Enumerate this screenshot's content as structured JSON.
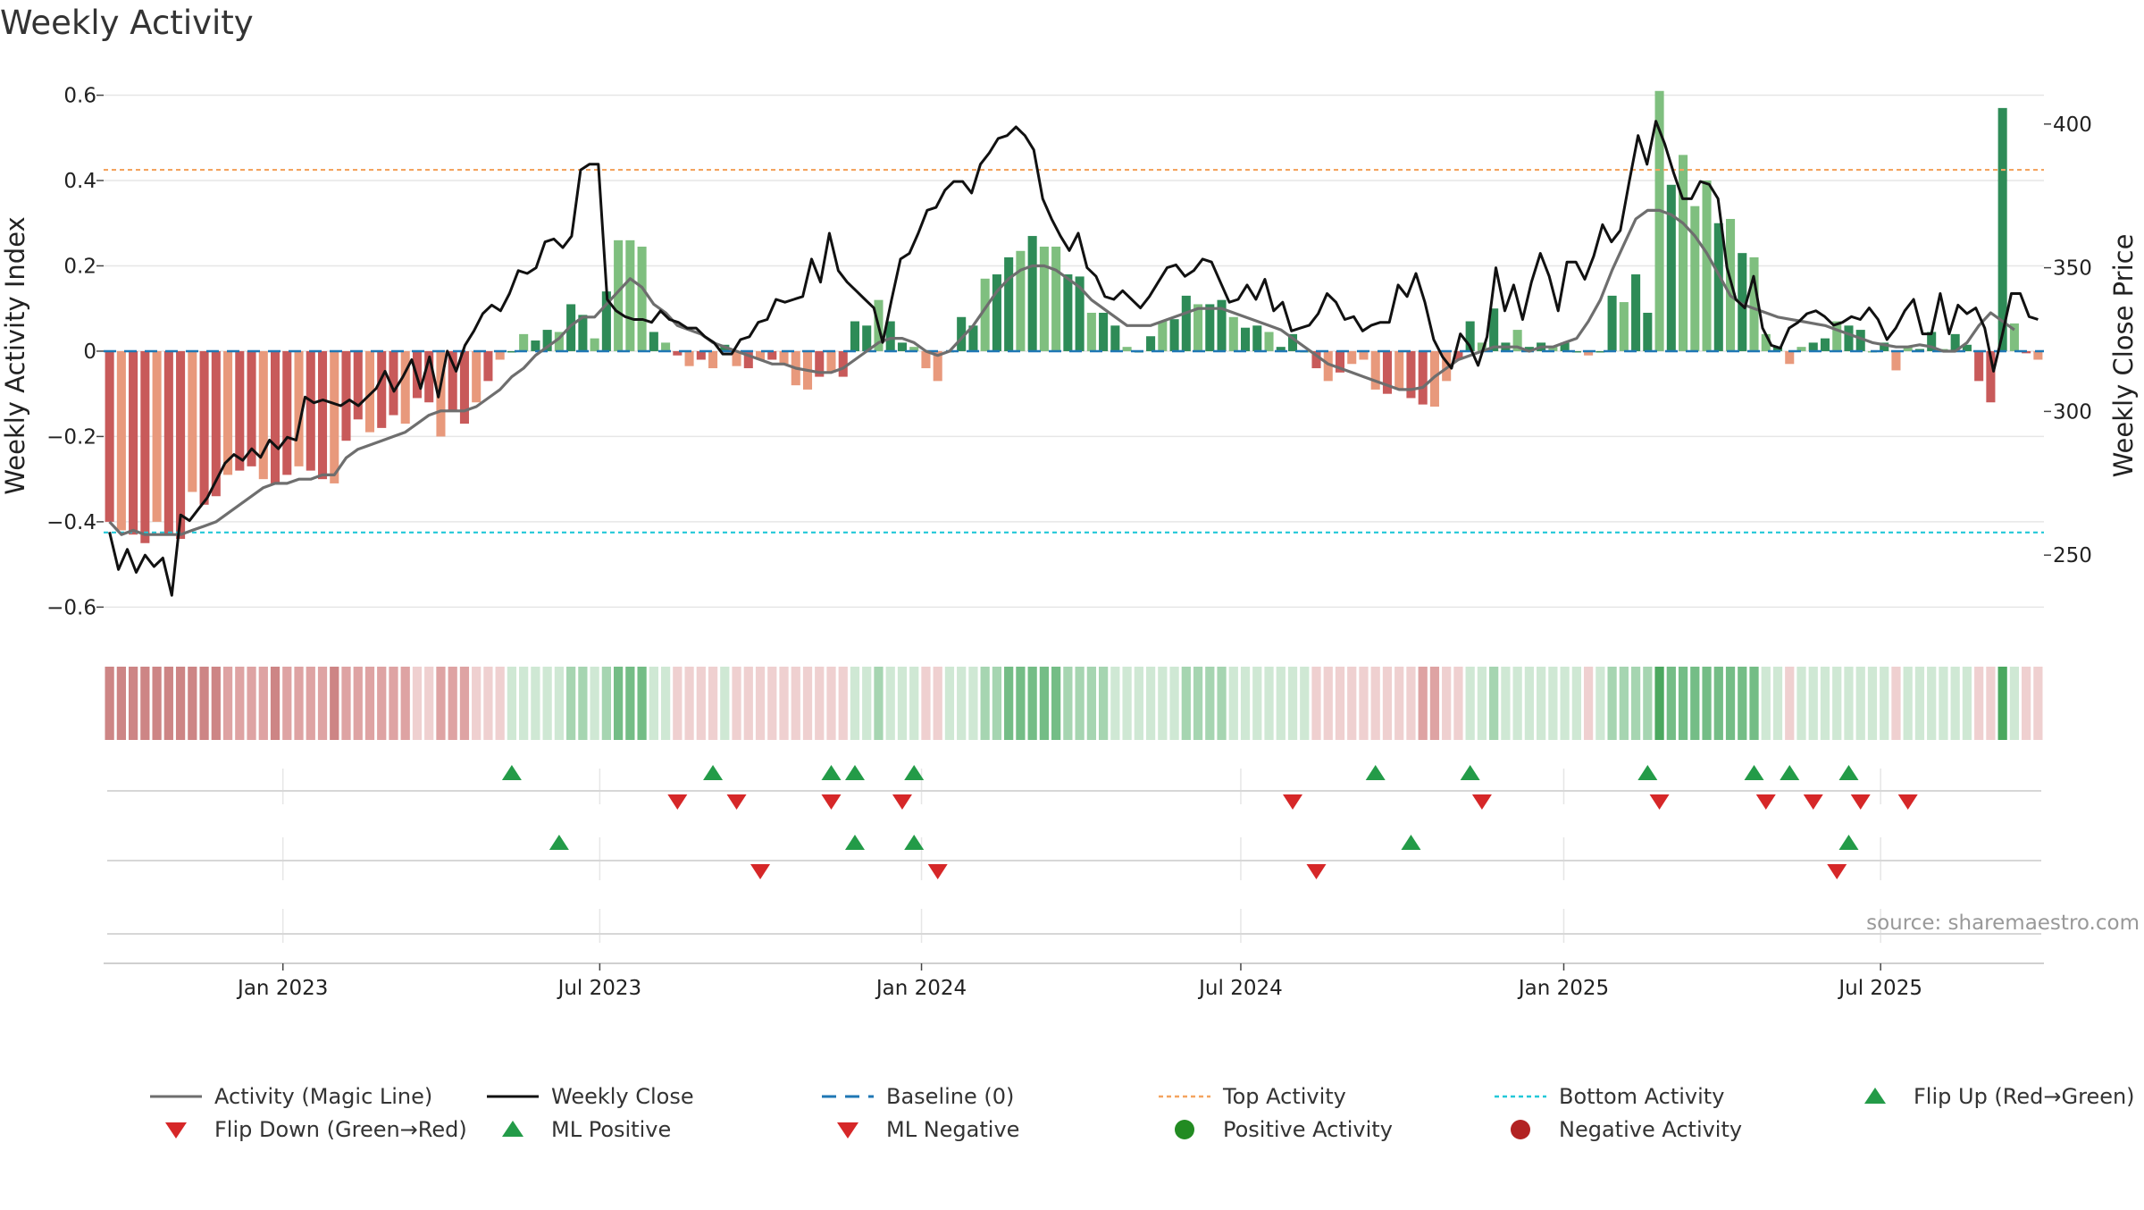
{
  "chart_data": {
    "type": "bar",
    "title": "Weekly Activity",
    "ylabel": "Weekly Activity Index",
    "y2label": "Weekly Close Price",
    "ylim": [
      -0.66,
      0.62
    ],
    "y2lim": [
      223,
      413
    ],
    "yticks": [
      -0.6,
      -0.4,
      -0.2,
      0,
      0.2,
      0.4,
      0.6
    ],
    "ytick_labels": [
      "−0.6",
      "−0.4",
      "−0.2",
      "0",
      "0.2",
      "0.4",
      "0.6"
    ],
    "y2ticks": [
      250,
      300,
      350,
      400
    ],
    "ytick2_labels": [
      "250",
      "300",
      "350",
      "400"
    ],
    "x_start": "2022-10-10",
    "x_domain_weeks": [
      0,
      158
    ],
    "x_ticks": [
      {
        "label": "Jan 2023",
        "week": 14.6
      },
      {
        "label": "Jul 2023",
        "week": 40.4
      },
      {
        "label": "Jan 2024",
        "week": 66.6
      },
      {
        "label": "Jul 2024",
        "week": 92.6
      },
      {
        "label": "Jan 2025",
        "week": 118.9
      },
      {
        "label": "Jul 2025",
        "week": 144.7
      }
    ],
    "top_activity": 0.425,
    "bottom_activity": -0.425,
    "activity": [
      -0.4,
      -0.42,
      -0.43,
      -0.45,
      -0.4,
      -0.43,
      -0.44,
      -0.33,
      -0.36,
      -0.34,
      -0.29,
      -0.28,
      -0.27,
      -0.3,
      -0.31,
      -0.29,
      -0.27,
      -0.28,
      -0.3,
      -0.31,
      -0.21,
      -0.16,
      -0.19,
      -0.18,
      -0.15,
      -0.17,
      -0.11,
      -0.12,
      -0.2,
      -0.14,
      -0.17,
      -0.12,
      -0.07,
      -0.02,
      0.0,
      0.04,
      0.025,
      0.05,
      0.045,
      0.11,
      0.085,
      0.03,
      0.14,
      0.26,
      0.26,
      0.245,
      0.045,
      0.02,
      -0.01,
      -0.035,
      -0.02,
      -0.04,
      0.015,
      -0.035,
      -0.04,
      -0.02,
      -0.02,
      -0.03,
      -0.08,
      -0.09,
      -0.06,
      -0.05,
      -0.06,
      0.07,
      0.06,
      0.12,
      0.07,
      0.02,
      0.01,
      -0.04,
      -0.07,
      0.0,
      0.08,
      0.06,
      0.17,
      0.18,
      0.22,
      0.235,
      0.27,
      0.245,
      0.245,
      0.18,
      0.175,
      0.09,
      0.09,
      0.06,
      0.01,
      0.0,
      0.035,
      0.07,
      0.075,
      0.13,
      0.11,
      0.11,
      0.12,
      0.08,
      0.055,
      0.06,
      0.045,
      0.01,
      0.04,
      0.0,
      -0.04,
      -0.07,
      -0.05,
      -0.03,
      -0.02,
      -0.09,
      -0.1,
      -0.09,
      -0.11,
      -0.125,
      -0.13,
      -0.07,
      -0.02,
      0.07,
      0.02,
      0.1,
      0.02,
      0.05,
      0.01,
      0.02,
      0.01,
      0.02,
      0.0,
      -0.01,
      0.0,
      0.13,
      0.115,
      0.18,
      0.09,
      0.61,
      0.39,
      0.46,
      0.34,
      0.4,
      0.3,
      0.31,
      0.23,
      0.22,
      0.04,
      0.01,
      -0.03,
      0.01,
      0.02,
      0.03,
      0.07,
      0.06,
      0.05,
      0.0,
      0.02,
      -0.045,
      0.01,
      0.005,
      0.045,
      0.005,
      0.04,
      0.015,
      -0.07,
      -0.12,
      0.57,
      0.065,
      -0.005,
      -0.02
    ],
    "magic_line": [
      -0.4,
      -0.43,
      -0.42,
      -0.43,
      -0.43,
      -0.43,
      -0.43,
      -0.42,
      -0.41,
      -0.4,
      -0.38,
      -0.36,
      -0.34,
      -0.32,
      -0.31,
      -0.31,
      -0.3,
      -0.3,
      -0.29,
      -0.29,
      -0.25,
      -0.23,
      -0.22,
      -0.21,
      -0.2,
      -0.19,
      -0.17,
      -0.15,
      -0.14,
      -0.14,
      -0.14,
      -0.13,
      -0.11,
      -0.09,
      -0.06,
      -0.04,
      -0.01,
      0.01,
      0.03,
      0.06,
      0.08,
      0.08,
      0.11,
      0.14,
      0.17,
      0.15,
      0.11,
      0.09,
      0.06,
      0.05,
      0.04,
      0.02,
      0.01,
      0.0,
      -0.01,
      -0.02,
      -0.03,
      -0.03,
      -0.04,
      -0.045,
      -0.05,
      -0.05,
      -0.04,
      -0.02,
      0.0,
      0.02,
      0.03,
      0.03,
      0.02,
      0.0,
      -0.01,
      0.0,
      0.03,
      0.06,
      0.1,
      0.14,
      0.17,
      0.19,
      0.2,
      0.2,
      0.19,
      0.17,
      0.15,
      0.12,
      0.1,
      0.08,
      0.06,
      0.06,
      0.06,
      0.07,
      0.08,
      0.09,
      0.1,
      0.1,
      0.1,
      0.09,
      0.08,
      0.07,
      0.06,
      0.05,
      0.03,
      0.01,
      -0.01,
      -0.03,
      -0.04,
      -0.05,
      -0.06,
      -0.07,
      -0.08,
      -0.09,
      -0.09,
      -0.085,
      -0.06,
      -0.04,
      -0.02,
      -0.01,
      0.0,
      0.01,
      0.01,
      0.01,
      0.0,
      0.01,
      0.01,
      0.02,
      0.03,
      0.07,
      0.12,
      0.19,
      0.25,
      0.31,
      0.33,
      0.33,
      0.32,
      0.3,
      0.27,
      0.23,
      0.18,
      0.13,
      0.11,
      0.1,
      0.09,
      0.08,
      0.075,
      0.07,
      0.065,
      0.06,
      0.05,
      0.04,
      0.03,
      0.02,
      0.015,
      0.01,
      0.01,
      0.015,
      0.01,
      0.0,
      0.0,
      0.02,
      0.06,
      0.09,
      0.07,
      0.05
    ],
    "weekly_close": [
      258,
      245,
      252,
      244,
      250,
      246,
      249,
      236,
      264,
      262,
      266,
      270,
      276,
      282,
      285,
      283,
      287,
      284,
      290,
      287,
      291,
      290,
      305,
      303,
      304,
      303,
      302,
      304,
      302,
      305,
      308,
      314,
      307,
      312,
      318,
      308,
      319,
      305,
      321,
      314,
      323,
      328,
      334,
      337,
      335,
      341,
      349,
      348,
      350,
      359,
      360,
      357,
      361,
      384,
      386,
      386,
      339,
      335,
      333,
      332,
      332,
      331,
      335,
      332,
      331,
      329,
      329,
      326,
      324,
      320,
      320,
      325,
      326,
      331,
      332,
      339,
      338,
      339,
      340,
      353,
      345,
      362,
      349,
      345,
      342,
      339,
      336,
      324,
      339,
      353,
      355,
      362,
      370,
      371,
      377,
      380,
      380,
      376,
      386,
      390,
      395,
      396,
      399,
      396,
      391,
      374,
      367,
      361,
      356,
      362,
      350,
      347,
      340,
      339,
      342,
      339,
      336,
      340,
      345,
      350,
      351,
      347,
      349,
      353,
      352,
      345,
      338,
      339,
      344,
      339,
      346,
      335,
      338,
      328,
      329,
      330,
      334,
      341,
      338,
      332,
      333,
      328,
      330,
      331,
      331,
      344,
      340,
      348,
      338,
      325,
      319,
      315,
      327,
      323,
      316,
      326,
      350,
      335,
      344,
      332,
      345,
      355,
      347,
      335,
      352,
      352,
      346,
      354,
      365,
      359,
      363,
      380,
      396,
      386,
      401,
      393,
      383,
      374,
      374,
      380,
      379,
      374,
      350,
      339,
      336,
      347,
      329,
      323,
      322,
      329,
      331,
      334,
      335,
      333,
      330,
      331,
      333,
      332,
      336,
      332,
      325,
      329,
      335,
      339,
      327,
      327,
      341,
      327,
      337,
      334,
      336,
      329,
      314,
      327,
      341,
      341,
      333,
      332
    ]
  },
  "heat_strip_colors": [
    "#d19090",
    "#d29292",
    "#d39696",
    "#d59a9a",
    "#d69e9e",
    "#d8a2a2",
    "#d9a6a6",
    "#dbaaaa",
    "#ddaeae",
    "#deb2b2",
    "#e0b6b6",
    "#e2baba",
    "#e3bebe",
    "#e5c2c2",
    "#c9e6cf",
    "#b3dcbd",
    "#9ed2ab",
    "#88c899",
    "#e3bebe",
    "#ebd0d0",
    "#f1dede",
    "#eccccc",
    "#c6e5cd",
    "#a8d8b4",
    "#e0b6b6",
    "#c4e4cb",
    "#abdab6",
    "#b5ddc0",
    "#c4e4cb",
    "#e6c4c4",
    "#edd3d3",
    "#c8e6ce",
    "#b9dfc3",
    "#a6d6b1",
    "#9cd1a8",
    "#a5d5b0",
    "#b3dcbd",
    "#c9e6cf",
    "#d8a2a2",
    "#e6c4c4",
    "#ebd0d0",
    "#f0dada",
    "#c5e5cc",
    "#d4ecd8",
    "#bce1c5",
    "#a0d3ab",
    "#83c293",
    "#6eb981",
    "#5caf71",
    "#a5d5b0",
    "#d7eedb",
    "#c0e3c8",
    "#e8c8c8",
    "#d3ecd8",
    "#c6e5cd",
    "#e3bebe",
    "#d3ecd8",
    "#a7d7b2",
    "#4da961",
    "#d8a2a2",
    "#f0dada",
    "#eccccc"
  ],
  "heat_strip_groups": [
    [
      0,
      29
    ],
    [
      29,
      42
    ],
    [
      42,
      48
    ],
    [
      48,
      56
    ],
    [
      56,
      65
    ],
    [
      65,
      83
    ],
    [
      83,
      98
    ],
    [
      98,
      102
    ],
    [
      102,
      110
    ],
    [
      110,
      118
    ],
    [
      118,
      131
    ],
    [
      131,
      142
    ],
    [
      142,
      151
    ],
    [
      151,
      156
    ],
    [
      156,
      158
    ]
  ],
  "heat_palette": {
    "red_dark": "#cd8585",
    "red_mid": "#dea3a3",
    "red_light": "#efd0d0",
    "green_light": "#cfe8d4",
    "green_mid": "#a6d5b1",
    "green_dark": "#74bd86",
    "green_max": "#4ba85f"
  },
  "signals": {
    "row1_up_weeks": [
      34,
      51,
      61,
      63,
      68,
      107,
      115,
      130,
      139,
      142,
      147
    ],
    "row1_down_weeks": [
      48,
      53,
      61,
      67,
      100,
      116,
      131,
      140,
      144,
      148,
      152
    ],
    "row2_up_weeks": [
      38,
      63,
      68,
      110,
      147
    ],
    "row2_down_weeks": [
      55,
      70,
      102,
      146
    ]
  },
  "colors": {
    "bar_green_dark": "#2e8b57",
    "bar_green_light": "#7fbf7f",
    "bar_red_dark": "#c85a5a",
    "bar_red_light": "#e8997c",
    "magic_line": "#6e6e6e",
    "close_line": "#111111",
    "baseline": "#1f77b4",
    "top_activity": "#f4a460",
    "bottom_activity": "#22c8d8",
    "up_triangle": "#239b48",
    "down_triangle": "#d62728",
    "positive_dot": "#228b22",
    "negative_dot": "#b22222"
  },
  "source_text": "source: sharemaestro.com",
  "legend": [
    {
      "key": "magic",
      "label": "Activity (Magic Line)",
      "icon": "gray-line-icon"
    },
    {
      "key": "close",
      "label": "Weekly Close",
      "icon": "black-line-icon"
    },
    {
      "key": "baseline",
      "label": "Baseline (0)",
      "icon": "blue-dashed-line-icon"
    },
    {
      "key": "top",
      "label": "Top Activity",
      "icon": "orange-dotted-line-icon"
    },
    {
      "key": "bottom",
      "label": "Bottom Activity",
      "icon": "cyan-dotted-line-icon"
    },
    {
      "key": "flipup",
      "label": "Flip Up (Red→Green)",
      "icon": "green-up-triangle-icon"
    },
    {
      "key": "flipdown",
      "label": "Flip Down (Green→Red)",
      "icon": "red-down-triangle-icon"
    },
    {
      "key": "mlpos",
      "label": "ML Positive",
      "icon": "green-up-triangle-icon"
    },
    {
      "key": "mlneg",
      "label": "ML Negative",
      "icon": "red-down-triangle-icon"
    },
    {
      "key": "posact",
      "label": "Positive Activity",
      "icon": "green-dot-icon"
    },
    {
      "key": "negact",
      "label": "Negative Activity",
      "icon": "red-dot-icon"
    }
  ]
}
